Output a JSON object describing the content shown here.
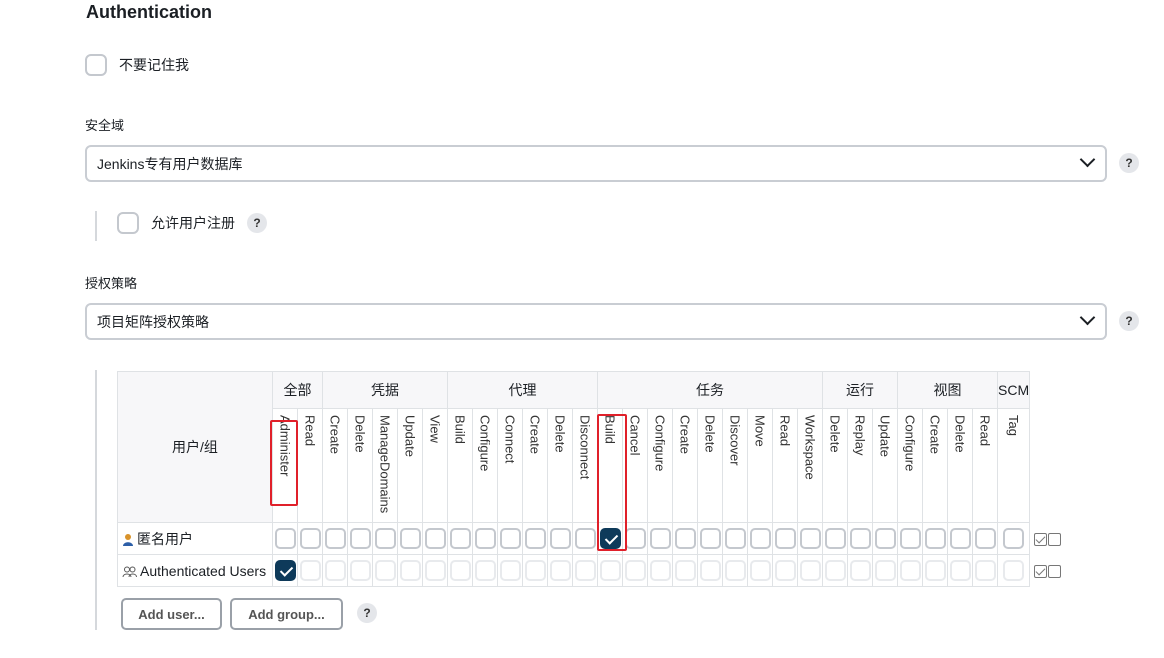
{
  "section": {
    "title": "Authentication"
  },
  "remember_me": {
    "label": "不要记住我",
    "checked": false
  },
  "security_realm": {
    "label": "安全域",
    "selected": "Jenkins专有用户数据库",
    "help": "?",
    "allow_signup": {
      "label": "允许用户注册",
      "checked": false,
      "help": "?"
    }
  },
  "authorization": {
    "label": "授权策略",
    "selected": "项目矩阵授权策略",
    "help": "?"
  },
  "matrix": {
    "user_col_header": "用户/组",
    "groups": [
      {
        "label": "全部",
        "span": 2
      },
      {
        "label": "凭据",
        "span": 5
      },
      {
        "label": "代理",
        "span": 6
      },
      {
        "label": "任务",
        "span": 9
      },
      {
        "label": "运行",
        "span": 3
      },
      {
        "label": "视图",
        "span": 4
      },
      {
        "label": "SCM",
        "span": 1
      }
    ],
    "permissions": [
      "Administer",
      "Read",
      "Create",
      "Delete",
      "ManageDomains",
      "Update",
      "View",
      "Build",
      "Configure",
      "Connect",
      "Create",
      "Delete",
      "Disconnect",
      "Build",
      "Cancel",
      "Configure",
      "Create",
      "Delete",
      "Discover",
      "Move",
      "Read",
      "Workspace",
      "Delete",
      "Replay",
      "Update",
      "Configure",
      "Create",
      "Delete",
      "Read",
      "Tag"
    ],
    "rows": [
      {
        "name": "匿名用户",
        "icon": "user-icon",
        "checked_index": 13
      },
      {
        "name": "Authenticated Users",
        "icon": "users-group-icon",
        "checked_index": 0
      }
    ]
  },
  "buttons": {
    "add_user": "Add user...",
    "add_group": "Add group...",
    "help": "?"
  },
  "colors": {
    "checked": "#0e3a5a",
    "highlight": "#e0202a"
  }
}
